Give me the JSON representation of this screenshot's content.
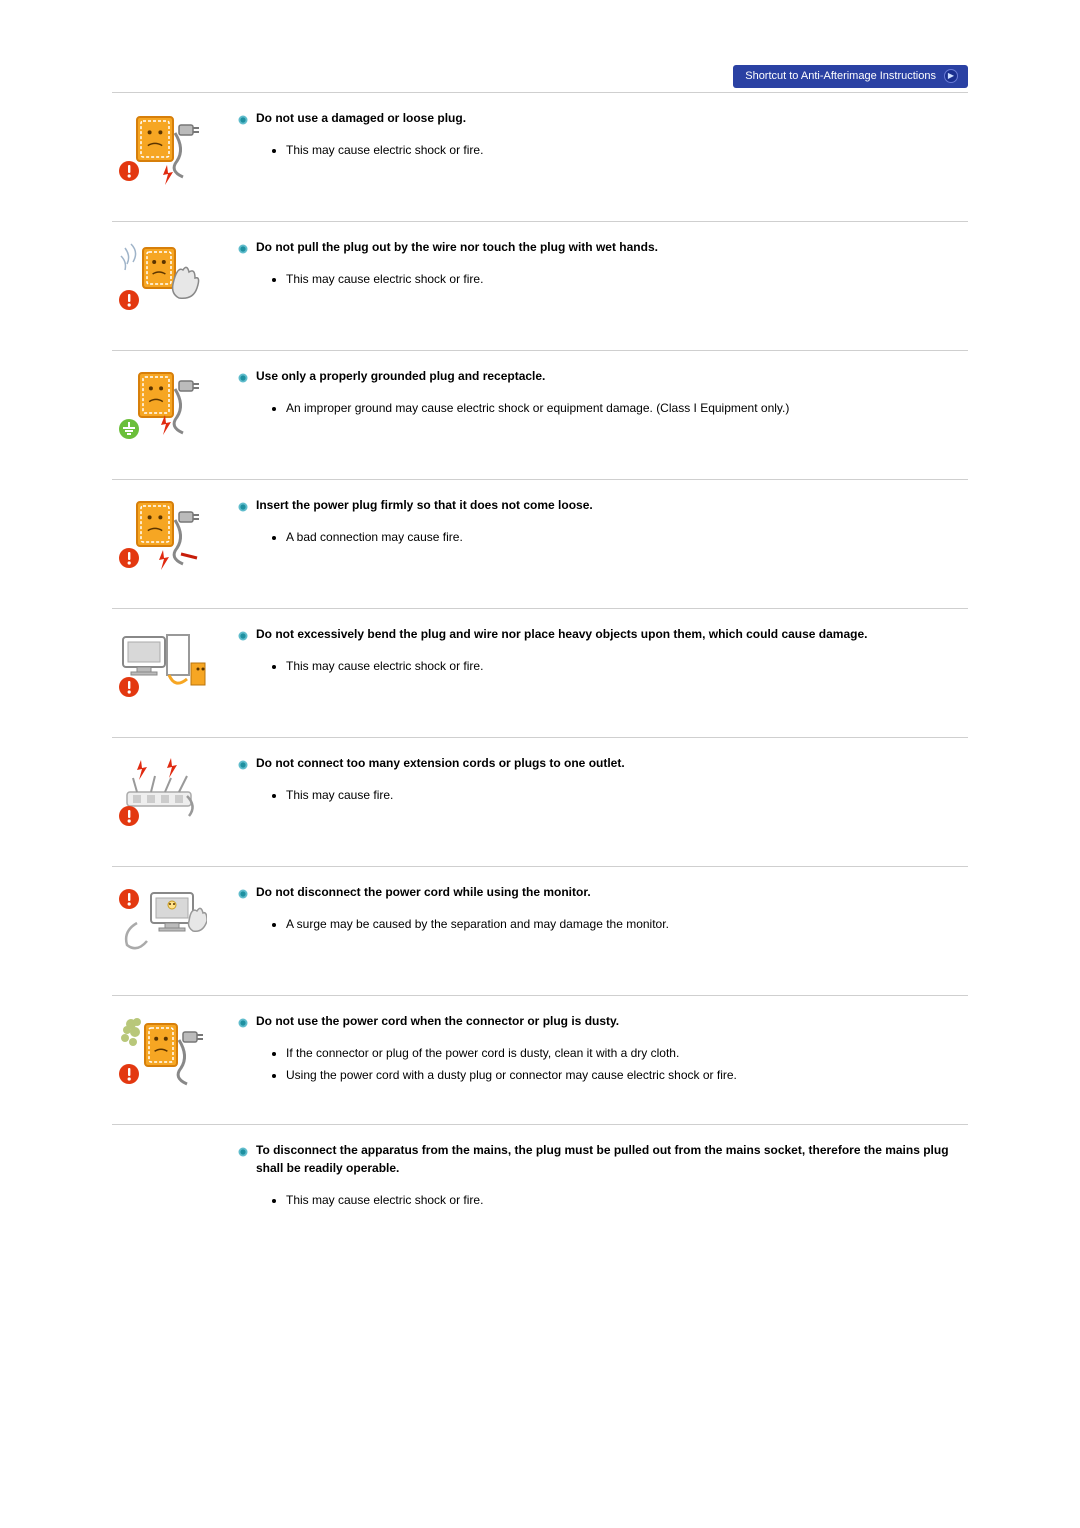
{
  "colors": {
    "bullet_fill": "#1e90a0",
    "bullet_ring": "#5fbccc",
    "divider": "#cfcfcf",
    "shortcut_bg": "#2a41a3",
    "shortcut_text": "#ffffff",
    "text": "#000000",
    "warn_blue": "#2a53e0",
    "warn_red": "#e33810",
    "warn_yellow": "#ffd400",
    "tile_orange": "#f6a623",
    "tile_border": "#d77f0a",
    "ground_green": "#6bbf3a",
    "gray_fill": "#d8d8d8"
  },
  "shortcut": {
    "label": "Shortcut to Anti-Afterimage Instructions"
  },
  "sections": [
    {
      "icon": "plug-damaged",
      "heading": "Do not use a damaged or loose plug.",
      "bullets": [
        "This may cause electric shock or fire."
      ]
    },
    {
      "icon": "wet-hands",
      "heading": "Do not pull the plug out by the wire nor touch the plug with wet hands.",
      "bullets": [
        "This may cause electric shock or fire."
      ]
    },
    {
      "icon": "grounded",
      "heading": "Use only a properly grounded plug and receptacle.",
      "bullets": [
        "An improper ground may cause electric shock or equipment damage. (Class I Equipment only.)"
      ]
    },
    {
      "icon": "plug-firm",
      "heading": "Insert the power plug firmly so that it does not come loose.",
      "bullets": [
        "A bad connection may cause fire."
      ]
    },
    {
      "icon": "bend-wire",
      "heading": "Do not excessively bend the plug and wire nor place heavy objects upon them, which could cause damage.",
      "bullets": [
        "This may cause electric shock or fire."
      ]
    },
    {
      "icon": "multi-plug",
      "heading": "Do not connect too many extension cords or plugs to one outlet.",
      "bullets": [
        "This may cause fire."
      ]
    },
    {
      "icon": "disconnect-running",
      "heading": "Do not disconnect the power cord while using the monitor.",
      "bullets": [
        "A surge may be caused by the separation and may damage the monitor."
      ]
    },
    {
      "icon": "dusty-plug",
      "heading": "Do not use the power cord when the connector or plug is dusty.",
      "bullets": [
        "If the connector or plug of the power cord is dusty, clean it with a dry cloth.",
        "Using the power cord with a dusty plug or connector may cause electric shock or fire."
      ]
    },
    {
      "icon": null,
      "heading": "To disconnect the apparatus from the mains, the plug must be pulled out from the mains socket, therefore the mains plug shall be readily operable.",
      "bullets": [
        "This may cause electric shock or fire."
      ]
    }
  ]
}
